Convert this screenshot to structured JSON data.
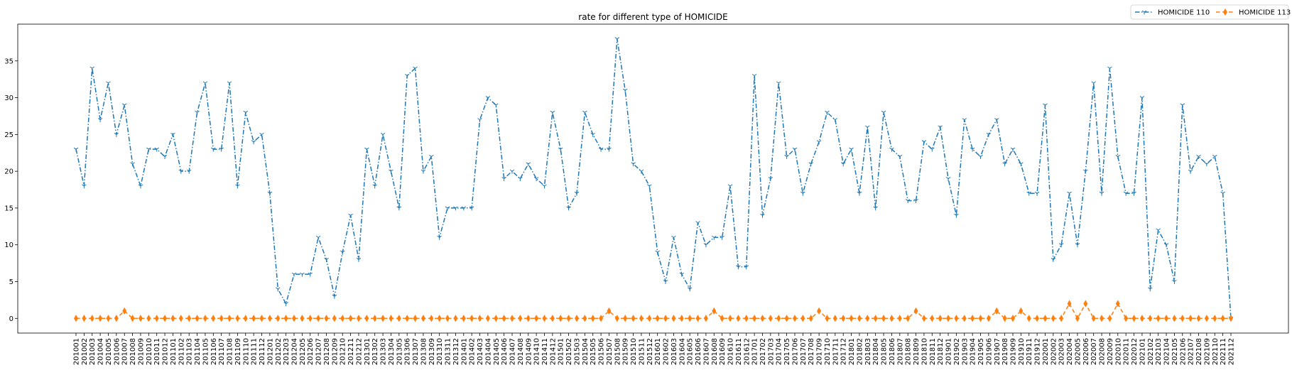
{
  "chart_data": {
    "type": "line",
    "title": "rate for different type of HOMICIDE",
    "xlabel": "",
    "ylabel": "",
    "ylim": [
      -2,
      40
    ],
    "yticks": [
      0,
      5,
      10,
      15,
      20,
      25,
      30,
      35
    ],
    "legend_position": "top-right, above plot",
    "grid": false,
    "categories": [
      "201001",
      "201002",
      "201003",
      "201004",
      "201005",
      "201006",
      "201007",
      "201008",
      "201009",
      "201010",
      "201011",
      "201012",
      "201101",
      "201102",
      "201103",
      "201104",
      "201105",
      "201106",
      "201107",
      "201108",
      "201109",
      "201110",
      "201111",
      "201112",
      "201201",
      "201202",
      "201203",
      "201204",
      "201205",
      "201206",
      "201207",
      "201208",
      "201209",
      "201210",
      "201211",
      "201212",
      "201301",
      "201302",
      "201303",
      "201304",
      "201305",
      "201306",
      "201307",
      "201308",
      "201309",
      "201310",
      "201311",
      "201312",
      "201401",
      "201402",
      "201403",
      "201404",
      "201405",
      "201406",
      "201407",
      "201408",
      "201409",
      "201410",
      "201411",
      "201412",
      "201501",
      "201502",
      "201503",
      "201504",
      "201505",
      "201506",
      "201507",
      "201508",
      "201509",
      "201510",
      "201511",
      "201512",
      "201601",
      "201602",
      "201603",
      "201604",
      "201605",
      "201606",
      "201607",
      "201608",
      "201609",
      "201610",
      "201611",
      "201612",
      "201701",
      "201702",
      "201703",
      "201704",
      "201705",
      "201706",
      "201707",
      "201708",
      "201709",
      "201710",
      "201711",
      "201712",
      "201801",
      "201802",
      "201803",
      "201804",
      "201805",
      "201806",
      "201807",
      "201808",
      "201809",
      "201810",
      "201811",
      "201812",
      "201901",
      "201902",
      "201903",
      "201904",
      "201905",
      "201906",
      "201907",
      "201908",
      "201909",
      "201910",
      "201911",
      "201912",
      "202001",
      "202002",
      "202003",
      "202004",
      "202005",
      "202006",
      "202007",
      "202008",
      "202009",
      "202010",
      "202011",
      "202012",
      "202101",
      "202102",
      "202103",
      "202104",
      "202105",
      "202106",
      "202107",
      "202108",
      "202109",
      "202110",
      "202111",
      "202112"
    ],
    "series": [
      {
        "name": "HOMICIDE 110",
        "color": "#1f77b4",
        "linestyle": "dashdot",
        "marker": "tri_down",
        "values": [
          23,
          18,
          34,
          27,
          32,
          25,
          29,
          21,
          18,
          23,
          23,
          22,
          25,
          20,
          20,
          28,
          32,
          23,
          23,
          32,
          18,
          28,
          24,
          25,
          17,
          4,
          2,
          6,
          6,
          6,
          11,
          8,
          3,
          9,
          14,
          8,
          23,
          18,
          25,
          20,
          15,
          33,
          34,
          20,
          22,
          11,
          15,
          15,
          15,
          15,
          27,
          30,
          29,
          19,
          20,
          19,
          21,
          19,
          18,
          28,
          23,
          15,
          17,
          28,
          25,
          23,
          23,
          38,
          31,
          21,
          20,
          18,
          9,
          5,
          11,
          6,
          4,
          13,
          10,
          11,
          11,
          18,
          7,
          7,
          33,
          14,
          19,
          32,
          22,
          23,
          17,
          21,
          24,
          28,
          27,
          21,
          23,
          17,
          26,
          15,
          28,
          23,
          22,
          16,
          16,
          24,
          23,
          26,
          19,
          14,
          27,
          23,
          22,
          25,
          27,
          21,
          23,
          21,
          17,
          17,
          29,
          8,
          10,
          17,
          10,
          20,
          32,
          17,
          34,
          22,
          17,
          17,
          30,
          4,
          12,
          10,
          5,
          29,
          20,
          22,
          21,
          22,
          17,
          0
        ]
      },
      {
        "name": "HOMICIDE 113",
        "color": "#ff7f0e",
        "linestyle": "dashed",
        "marker": "thin_diamond",
        "values": [
          0,
          0,
          0,
          0,
          0,
          0,
          1,
          0,
          0,
          0,
          0,
          0,
          0,
          0,
          0,
          0,
          0,
          0,
          0,
          0,
          0,
          0,
          0,
          0,
          0,
          0,
          0,
          0,
          0,
          0,
          0,
          0,
          0,
          0,
          0,
          0,
          0,
          0,
          0,
          0,
          0,
          0,
          0,
          0,
          0,
          0,
          0,
          0,
          0,
          0,
          0,
          0,
          0,
          0,
          0,
          0,
          0,
          0,
          0,
          0,
          0,
          0,
          0,
          0,
          0,
          0,
          1,
          0,
          0,
          0,
          0,
          0,
          0,
          0,
          0,
          0,
          0,
          0,
          0,
          1,
          0,
          0,
          0,
          0,
          0,
          0,
          0,
          0,
          0,
          0,
          0,
          0,
          1,
          0,
          0,
          0,
          0,
          0,
          0,
          0,
          0,
          0,
          0,
          0,
          1,
          0,
          0,
          0,
          0,
          0,
          0,
          0,
          0,
          0,
          1,
          0,
          0,
          1,
          0,
          0,
          0,
          0,
          0,
          2,
          0,
          2,
          0,
          0,
          0,
          2,
          0,
          0,
          0,
          0,
          0,
          0,
          0,
          0,
          0,
          0,
          0,
          0,
          0,
          0
        ]
      }
    ]
  }
}
